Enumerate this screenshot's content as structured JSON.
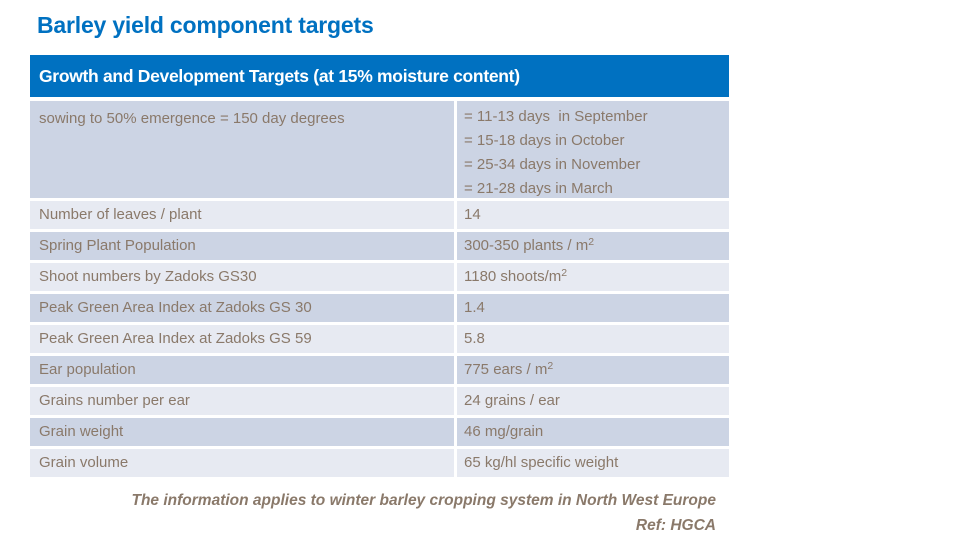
{
  "title": "Barley yield component targets",
  "table": {
    "header": "Growth and Development Targets (at 15% moisture content)",
    "rows": [
      {
        "label": "sowing to 50% emergence = 150 day degrees",
        "value_lines": [
          "= 11-13 days  in September",
          "= 15-18 days in October",
          "= 25-34 days in November",
          "= 21-28 days in March"
        ]
      },
      {
        "label": "Number of leaves / plant",
        "value": "14"
      },
      {
        "label": "Spring Plant Population",
        "value": "300-350 plants / m",
        "sup": "2"
      },
      {
        "label": "Shoot numbers by Zadoks GS30",
        "value": "1180 shoots/m",
        "sup": "2"
      },
      {
        "label": "Peak Green Area Index at Zadoks GS 30",
        "value": "1.4"
      },
      {
        "label": "Peak Green Area Index at Zadoks GS 59",
        "value": "5.8"
      },
      {
        "label": "Ear population",
        "value": "775 ears / m",
        "sup": "2"
      },
      {
        "label": "Grains number per ear",
        "value": "24 grains / ear"
      },
      {
        "label": "Grain weight",
        "value": "46 mg/grain"
      },
      {
        "label": "Grain volume",
        "value": "65 kg/hl specific weight"
      }
    ]
  },
  "footer": {
    "line1": "The information applies to winter barley cropping system in North West Europe",
    "line2": "Ref: HGCA"
  },
  "colors": {
    "accent_blue": "#0071C1",
    "header_text": "#FFFFFF",
    "row_dark": "#CCD4E4",
    "row_light": "#E7EAF2",
    "text_brown": "#8A796A"
  }
}
